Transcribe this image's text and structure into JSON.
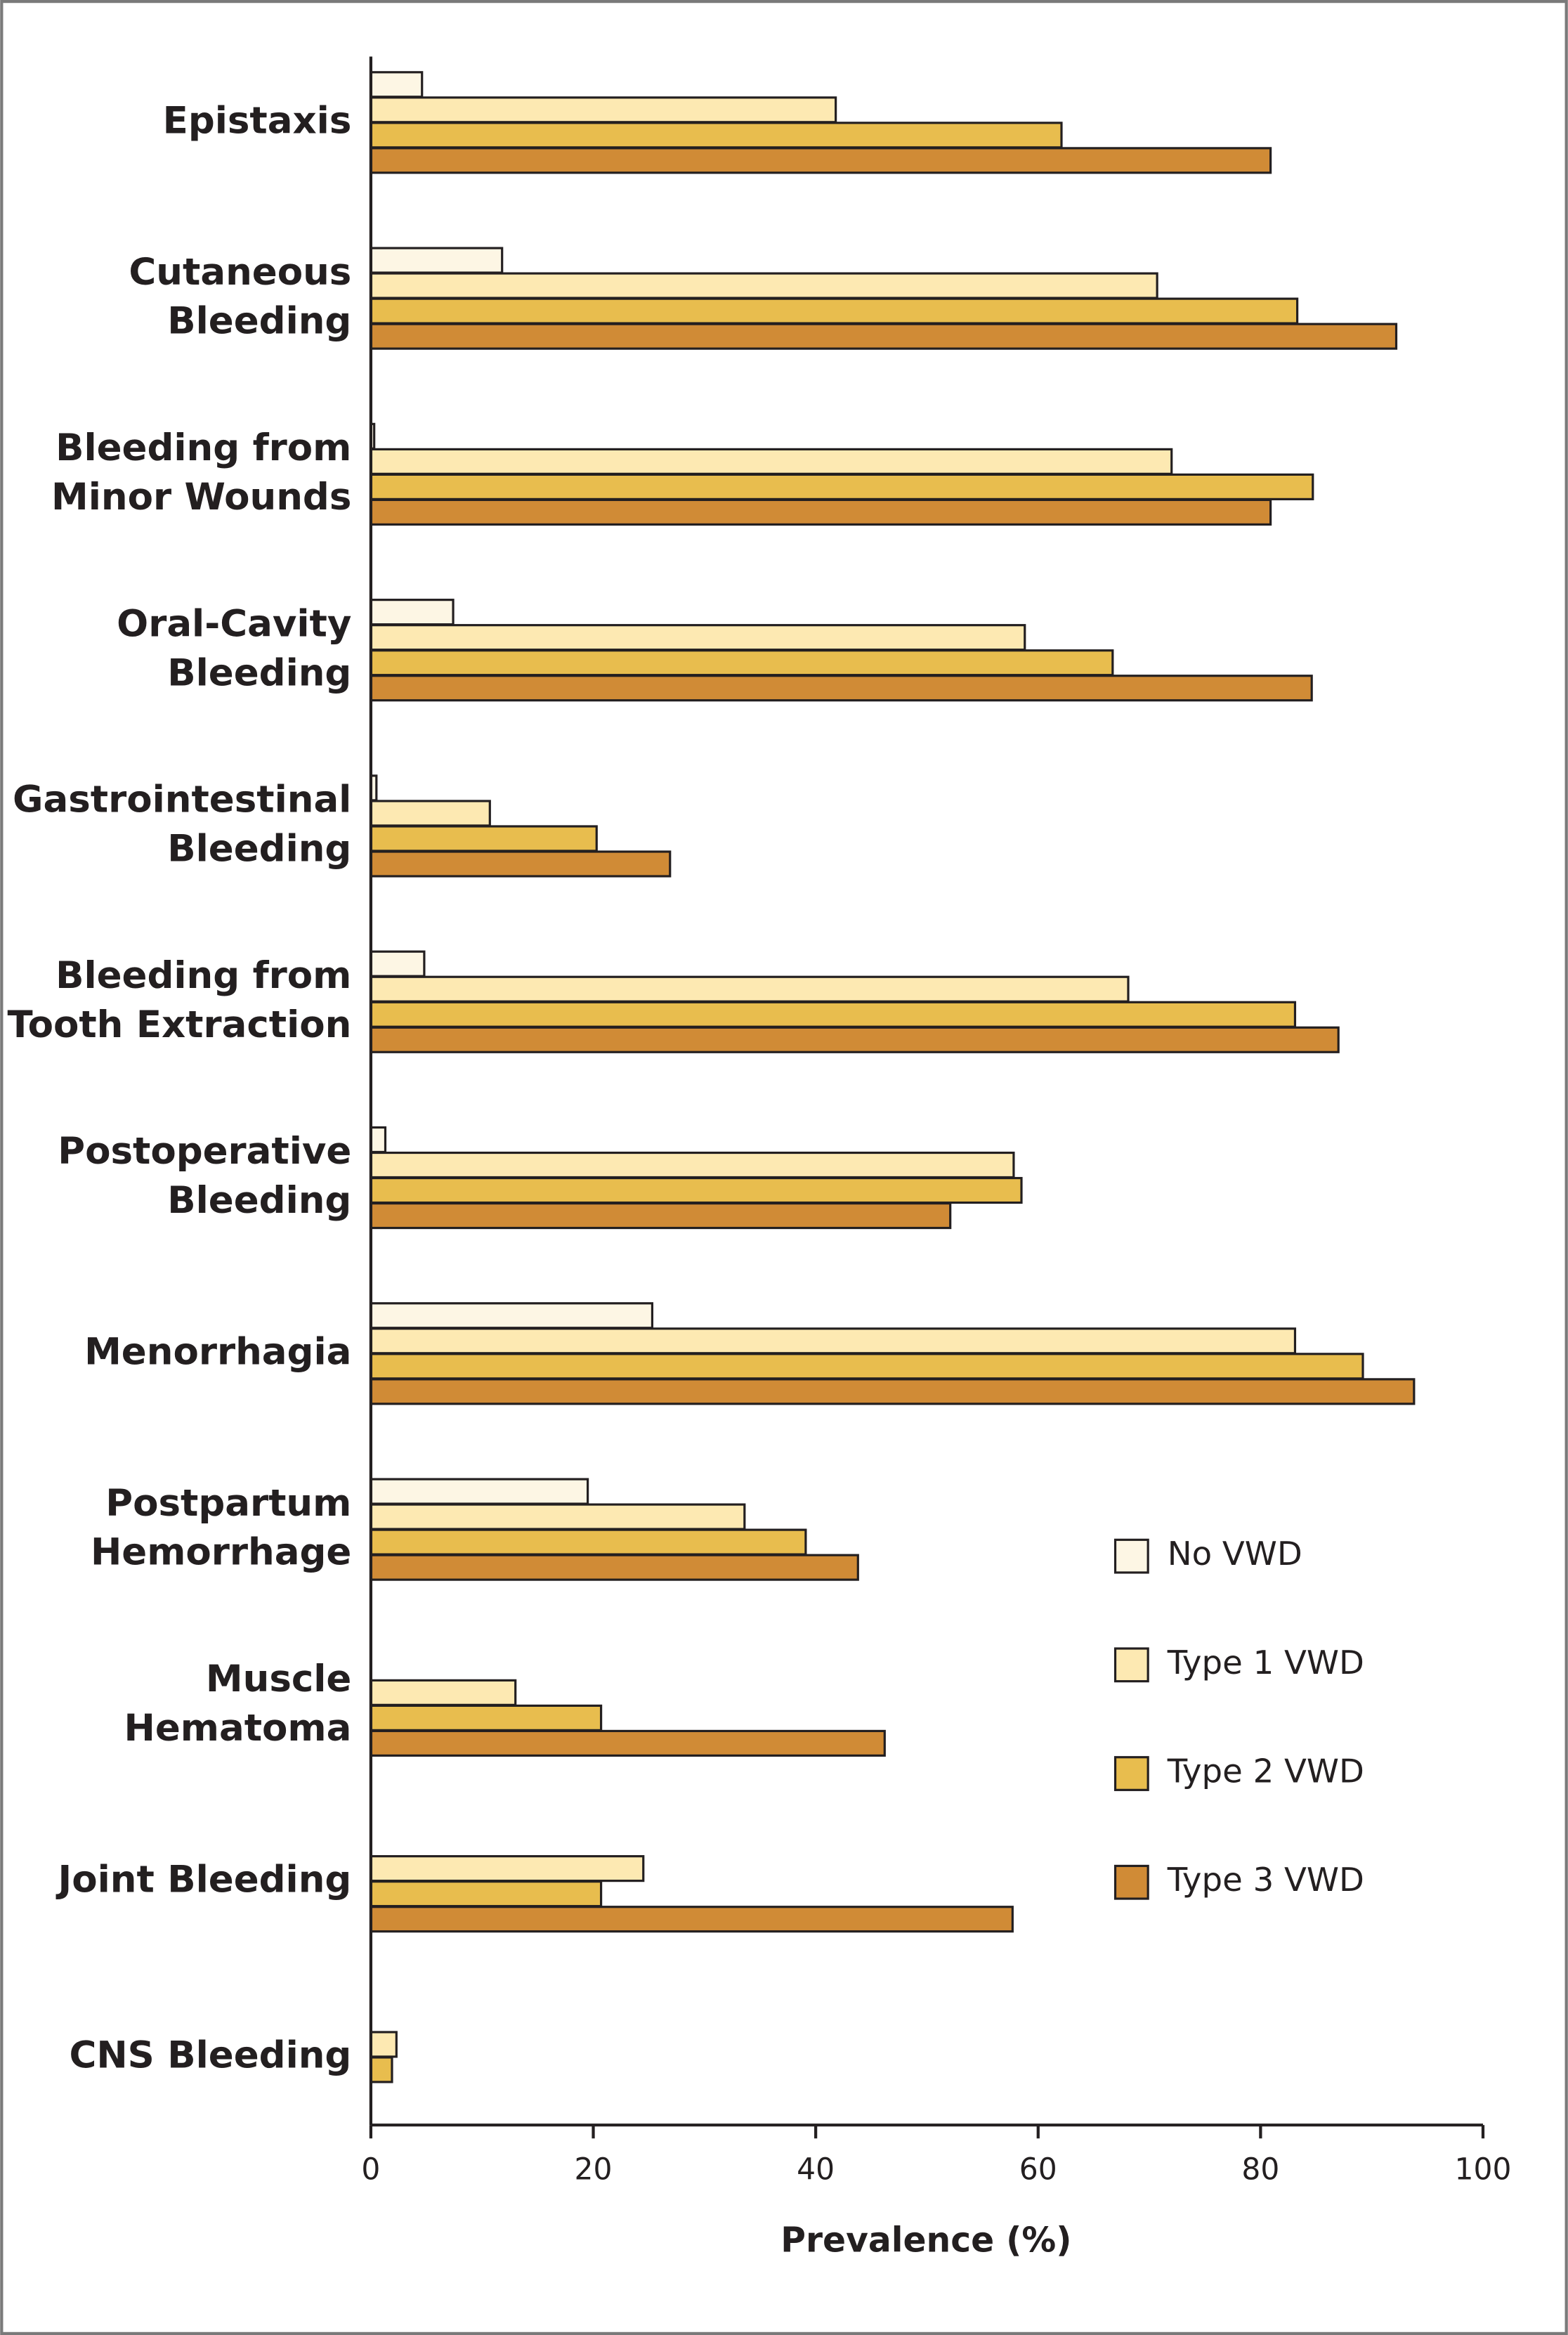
{
  "chart_data": {
    "type": "barh",
    "x_label": "Prevalence (%)",
    "categories": [
      [
        "Epistaxis"
      ],
      [
        "Cutaneous",
        "Bleeding"
      ],
      [
        "Bleeding from",
        "Minor Wounds"
      ],
      [
        "Oral-Cavity",
        "Bleeding"
      ],
      [
        "Gastrointestinal",
        "Bleeding"
      ],
      [
        "Bleeding from",
        "Tooth Extraction"
      ],
      [
        "Postoperative",
        "Bleeding"
      ],
      [
        "Menorrhagia"
      ],
      [
        "Postpartum",
        "Hemorrhage"
      ],
      [
        "Muscle",
        "Hematoma"
      ],
      [
        "Joint Bleeding"
      ],
      [
        "CNS Bleeding"
      ]
    ],
    "series": [
      {
        "name": "No VWD",
        "color": "#fdf6e4",
        "values": [
          4.6,
          11.8,
          0.3,
          7.4,
          0.5,
          4.8,
          1.3,
          25.3,
          19.5,
          null,
          null,
          null
        ]
      },
      {
        "name": "Type 1 VWD",
        "color": "#fde9b2",
        "values": [
          41.8,
          70.7,
          72.0,
          58.8,
          10.7,
          68.1,
          57.8,
          83.1,
          33.6,
          13.0,
          24.5,
          2.3
        ]
      },
      {
        "name": "Type 2 VWD",
        "color": "#e8bd4e",
        "values": [
          62.1,
          83.3,
          84.7,
          66.7,
          20.3,
          83.1,
          58.5,
          89.2,
          39.1,
          20.7,
          20.7,
          1.9
        ]
      },
      {
        "name": "Type 3 VWD",
        "color": "#d08b36",
        "values": [
          80.9,
          92.2,
          80.9,
          84.6,
          26.9,
          87.0,
          52.1,
          93.8,
          43.8,
          46.2,
          57.7,
          null
        ]
      }
    ],
    "xlim": [
      0,
      100
    ],
    "xticks": [
      0,
      20,
      40,
      60,
      80,
      100
    ],
    "legend": "lower right"
  }
}
